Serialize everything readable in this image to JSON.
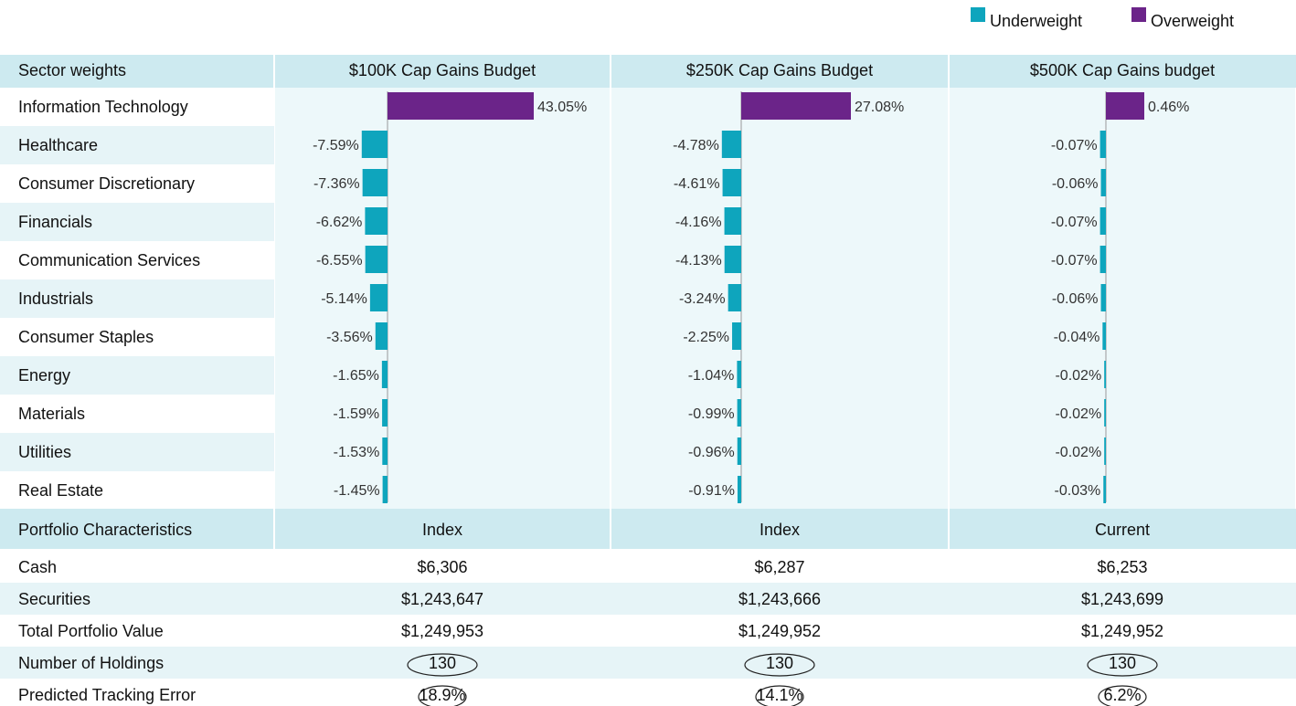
{
  "legend": [
    {
      "label": "Underweight",
      "color": "#0ea5bd"
    },
    {
      "label": "Overweight",
      "color": "#6b2489"
    }
  ],
  "sector_weights": {
    "header": [
      "Sector weights",
      "$100K Cap Gains Budget",
      "$250K Cap Gains Budget",
      "$500K Cap Gains budget"
    ],
    "rows": [
      "Information Technology",
      "Healthcare",
      "Consumer Discretionary",
      "Financials",
      "Communication Services",
      "Industrials",
      "Consumer Staples",
      "Energy",
      "Materials",
      "Utilities",
      "Real Estate"
    ],
    "series": [
      {
        "values": [
          43.05,
          -7.59,
          -7.36,
          -6.62,
          -6.55,
          -5.14,
          -3.56,
          -1.65,
          -1.59,
          -1.53,
          -1.45
        ],
        "value_labels": [
          "43.05%",
          "-7.59%",
          "-7.36%",
          "-6.62%",
          "-6.55%",
          "-5.14%",
          "-3.56%",
          "-1.65%",
          "-1.59%",
          "-1.53%",
          "-1.45%"
        ]
      },
      {
        "values": [
          27.08,
          -4.78,
          -4.61,
          -4.16,
          -4.13,
          -3.24,
          -2.25,
          -1.04,
          -0.99,
          -0.96,
          -0.91
        ],
        "value_labels": [
          "27.08%",
          "-4.78%",
          "-4.61%",
          "-4.16%",
          "-4.13%",
          "-3.24%",
          "-2.25%",
          "-1.04%",
          "-0.99%",
          "-0.96%",
          "-0.91%"
        ]
      },
      {
        "values": [
          0.46,
          -0.07,
          -0.06,
          -0.07,
          -0.07,
          -0.06,
          -0.04,
          -0.02,
          -0.02,
          -0.02,
          -0.03
        ],
        "value_labels": [
          "0.46%",
          "-0.07%",
          "-0.06%",
          "-0.07%",
          "-0.07%",
          "-0.06%",
          "-0.04%",
          "-0.02%",
          "-0.02%",
          "-0.02%",
          "-0.03%"
        ]
      }
    ]
  },
  "portfolio_characteristics": {
    "header": [
      "Portfolio Characteristics",
      "Index",
      "Index",
      "Current"
    ],
    "rows": [
      [
        "Cash",
        "$6,306",
        "$6,287",
        "$6,253"
      ],
      [
        "Securities",
        "$1,243,647",
        "$1,243,666",
        "$1,243,699"
      ],
      [
        "Total Portfolio Value",
        "$1,249,953",
        "$1,249,952",
        "$1,249,952"
      ],
      [
        "Number of Holdings",
        "130",
        "130",
        "130"
      ],
      [
        "Predicted Tracking Error",
        "18.9%",
        "14.1%",
        "6.2%"
      ]
    ]
  }
}
